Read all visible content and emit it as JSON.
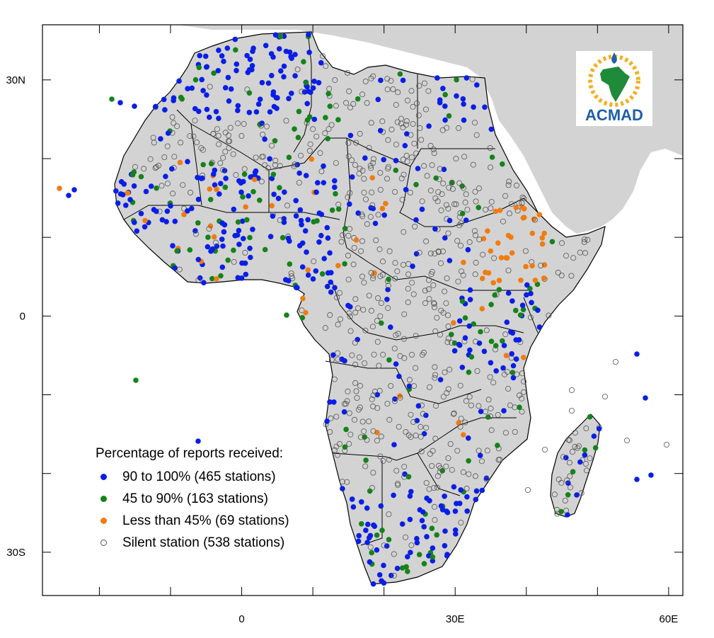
{
  "axes": {
    "x_ticks": [
      {
        "value": 0,
        "label": "0"
      },
      {
        "value": 30,
        "label": "30E"
      },
      {
        "value": 60,
        "label": "60E"
      }
    ],
    "y_ticks": [
      {
        "value": 30,
        "label": "30N"
      },
      {
        "value": 0,
        "label": "0"
      },
      {
        "value": -30,
        "label": "30S"
      }
    ],
    "lon_range": [
      -28,
      62
    ],
    "lat_range": [
      -35.5,
      37
    ]
  },
  "legend": {
    "title": "Percentage of reports received:",
    "items": [
      {
        "label": "90 to 100% (465 stations)",
        "color": "#0a1ee6",
        "filled": true
      },
      {
        "label": "45 to 90% (163 stations)",
        "color": "#15821a",
        "filled": true
      },
      {
        "label": "Less than 45% (69 stations)",
        "color": "#f07c12",
        "filled": true
      },
      {
        "label": "Silent station (538 stations)",
        "color": "#555555",
        "filled": false
      }
    ]
  },
  "logo": {
    "text": "ACMAD"
  },
  "colors": {
    "land": "#d3d3d3",
    "border": "#000000",
    "ocean": "#ffffff"
  }
}
